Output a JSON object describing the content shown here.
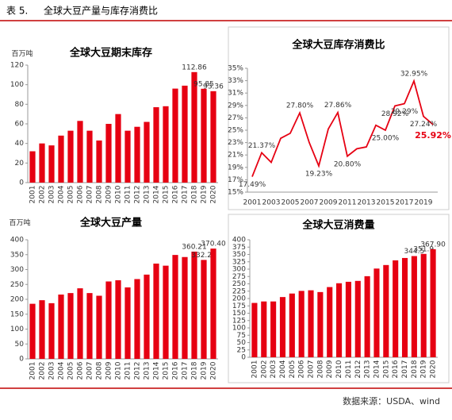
{
  "header": {
    "label": "表 5.",
    "title": "全球大豆产量与库存消费比"
  },
  "source": "数据来源：USDA、wind",
  "chart_data": [
    {
      "type": "bar",
      "title": "全球大豆期末库存",
      "y_label": "百万吨",
      "color": "#e60012",
      "categories": [
        "2001",
        "2002",
        "2003",
        "2004",
        "2005",
        "2006",
        "2007",
        "2008",
        "2009",
        "2010",
        "2011",
        "2012",
        "2013",
        "2014",
        "2015",
        "2016",
        "2017",
        "2018",
        "2019",
        "2020"
      ],
      "values": [
        32,
        40,
        38,
        48,
        53,
        63,
        53,
        43,
        60,
        70,
        53,
        57,
        62,
        77,
        78,
        96,
        99,
        112.86,
        95.85,
        93.36
      ],
      "value_labels": [
        null,
        null,
        null,
        null,
        null,
        null,
        null,
        null,
        null,
        null,
        null,
        null,
        null,
        null,
        null,
        null,
        null,
        "112.86",
        "95.85",
        "93.36"
      ],
      "ylim": [
        0,
        120
      ],
      "yticks": [
        0,
        20,
        40,
        60,
        80,
        100,
        120
      ],
      "grid": false
    },
    {
      "type": "line",
      "title": "全球大豆库存消费比",
      "x": [
        2001,
        2002,
        2003,
        2004,
        2005,
        2006,
        2007,
        2008,
        2009,
        2010,
        2011,
        2012,
        2013,
        2014,
        2015,
        2016,
        2017,
        2018,
        2019,
        2020
      ],
      "xlim": [
        2000.5,
        2020.5
      ],
      "xticks": [
        2001,
        2003,
        2005,
        2007,
        2009,
        2011,
        2013,
        2015,
        2017,
        2019
      ],
      "series": [
        {
          "name": "库存消费比",
          "color": "#e60012",
          "values": [
            17.49,
            21.37,
            19.8,
            23.7,
            24.5,
            27.8,
            23.0,
            19.23,
            25.2,
            27.86,
            20.8,
            22.0,
            22.3,
            25.8,
            25.0,
            28.92,
            29.29,
            32.95,
            27.24,
            25.92
          ],
          "value_labels": [
            "17.49%",
            "21.37%",
            null,
            null,
            null,
            "27.80%",
            null,
            "19.23%",
            null,
            "27.86%",
            "20.80%",
            null,
            null,
            null,
            "25.00%",
            "28.92%",
            "29.29%",
            "32.95%",
            "27.24%",
            "25.92%"
          ]
        }
      ],
      "ylim": [
        15,
        35
      ],
      "yticks": [
        {
          "value": 15,
          "label": "15%"
        },
        {
          "value": 17,
          "label": "17%"
        },
        {
          "value": 19,
          "label": "19%"
        },
        {
          "value": 21,
          "label": "21%"
        },
        {
          "value": 23,
          "label": "23%"
        },
        {
          "value": 25,
          "label": "25%"
        },
        {
          "value": 27,
          "label": "27%"
        },
        {
          "value": 29,
          "label": "29%"
        },
        {
          "value": 31,
          "label": "31%"
        },
        {
          "value": 33,
          "label": "33%"
        },
        {
          "value": 35,
          "label": "35%"
        }
      ],
      "grid": false
    },
    {
      "type": "bar",
      "title": "全球大豆产量",
      "y_label": "百万吨",
      "color": "#e60012",
      "categories": [
        "2001",
        "2002",
        "2003",
        "2004",
        "2005",
        "2006",
        "2007",
        "2008",
        "2009",
        "2010",
        "2011",
        "2012",
        "2013",
        "2014",
        "2015",
        "2016",
        "2017",
        "2018",
        "2019",
        "2020"
      ],
      "values": [
        185,
        197,
        187,
        216,
        221,
        237,
        221,
        212,
        260,
        264,
        240,
        268,
        283,
        320,
        313,
        349,
        342,
        360.21,
        332.28,
        370.4
      ],
      "value_labels": [
        null,
        null,
        null,
        null,
        null,
        null,
        null,
        null,
        null,
        null,
        null,
        null,
        null,
        null,
        null,
        null,
        null,
        "360.21",
        "332.28",
        "370.40"
      ],
      "ylim": [
        0,
        400
      ],
      "yticks": [
        0,
        50,
        100,
        150,
        200,
        250,
        300,
        350,
        400
      ],
      "grid": false
    },
    {
      "type": "bar",
      "title": "全球大豆消费量",
      "color": "#e60012",
      "categories": [
        "2001",
        "2002",
        "2003",
        "2004",
        "2005",
        "2006",
        "2007",
        "2008",
        "2009",
        "2010",
        "2011",
        "2012",
        "2013",
        "2014",
        "2015",
        "2016",
        "2017",
        "2018",
        "2019",
        "2020"
      ],
      "values": [
        185,
        190,
        190,
        205,
        217,
        226,
        228,
        222,
        239,
        252,
        257,
        260,
        276,
        302,
        314,
        330,
        338,
        344.5,
        351.9,
        367.9
      ],
      "value_labels": [
        null,
        null,
        null,
        null,
        null,
        null,
        null,
        null,
        null,
        null,
        null,
        null,
        null,
        null,
        null,
        null,
        null,
        "344.5",
        "351.9",
        "367.90"
      ],
      "ylim": [
        0,
        400
      ],
      "yticks": [
        0,
        25,
        50,
        75,
        100,
        125,
        150,
        175,
        200,
        225,
        250,
        275,
        300,
        325,
        350,
        375,
        400
      ],
      "grid": false
    }
  ]
}
